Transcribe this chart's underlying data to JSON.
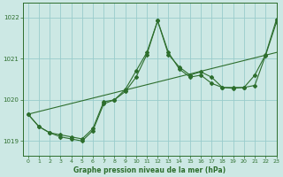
{
  "title": "Graphe pression niveau de la mer (hPa)",
  "bg_color": "#cce8e4",
  "grid_color": "#99cccc",
  "line_color": "#2d6e2d",
  "xlim": [
    -0.5,
    23
  ],
  "ylim": [
    1018.65,
    1022.35
  ],
  "yticks": [
    1019,
    1020,
    1021,
    1022
  ],
  "xticks": [
    0,
    1,
    2,
    3,
    4,
    5,
    6,
    7,
    8,
    9,
    10,
    11,
    12,
    13,
    14,
    15,
    16,
    17,
    18,
    19,
    20,
    21,
    22,
    23
  ],
  "trend_x": [
    0,
    23
  ],
  "trend_y": [
    1019.65,
    1021.15
  ],
  "line2_x": [
    0,
    1,
    2,
    3,
    4,
    5,
    6,
    7,
    8,
    9,
    10,
    11,
    12,
    13,
    14,
    15,
    16,
    17,
    18,
    19,
    20,
    21,
    22,
    23
  ],
  "line2_y": [
    1019.65,
    1019.35,
    1019.2,
    1019.15,
    1019.1,
    1019.05,
    1019.3,
    1019.95,
    1020.0,
    1020.25,
    1020.7,
    1021.15,
    1021.92,
    1021.15,
    1020.75,
    1020.55,
    1020.6,
    1020.4,
    1020.3,
    1020.3,
    1020.3,
    1020.6,
    1021.1,
    1021.95
  ],
  "line3_x": [
    0,
    1,
    2,
    3,
    4,
    5,
    6,
    7,
    8,
    9,
    10,
    11,
    12,
    13,
    14,
    15,
    16,
    17,
    18,
    19,
    20,
    21,
    22,
    23
  ],
  "line3_y": [
    1019.65,
    1019.35,
    1019.2,
    1019.1,
    1019.05,
    1019.0,
    1019.25,
    1019.9,
    1020.0,
    1020.2,
    1020.55,
    1021.1,
    1021.92,
    1021.1,
    1020.8,
    1020.6,
    1020.68,
    1020.55,
    1020.3,
    1020.28,
    1020.3,
    1020.35,
    1021.08,
    1021.88
  ]
}
